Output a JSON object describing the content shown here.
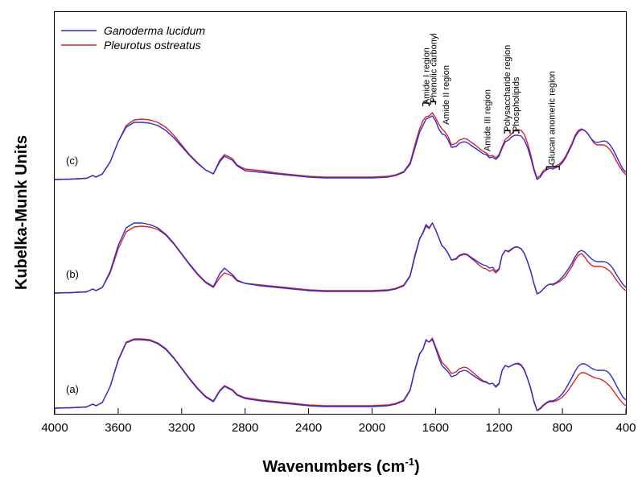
{
  "chart_data": {
    "type": "line",
    "xlabel": "Wavenumbers (cm",
    "xlabel_sup": "-1",
    "xlabel_end": ")",
    "ylabel": "Kubelka-Munk Units",
    "xlim": [
      4000,
      400
    ],
    "x_reversed": true,
    "xticks": [
      4000,
      3600,
      3200,
      2800,
      2400,
      2000,
      1600,
      1200,
      800,
      400
    ],
    "legend_placement": "top-left",
    "grid": false,
    "series": [
      {
        "name": "Ganoderma lucidum",
        "color": "#2b2bdb"
      },
      {
        "name": "Pleurotus ostreatus",
        "color": "#e02020"
      }
    ],
    "panels": [
      {
        "label": "(c)",
        "x": [
          4000,
          3900,
          3800,
          3760,
          3740,
          3700,
          3650,
          3600,
          3550,
          3500,
          3450,
          3400,
          3350,
          3300,
          3250,
          3200,
          3150,
          3100,
          3050,
          3000,
          2960,
          2930,
          2900,
          2880,
          2850,
          2800,
          2700,
          2600,
          2500,
          2400,
          2300,
          2200,
          2100,
          2000,
          1900,
          1850,
          1800,
          1760,
          1730,
          1700,
          1680,
          1660,
          1640,
          1620,
          1600,
          1580,
          1560,
          1540,
          1520,
          1500,
          1470,
          1450,
          1420,
          1400,
          1380,
          1350,
          1320,
          1300,
          1280,
          1260,
          1240,
          1220,
          1200,
          1180,
          1160,
          1140,
          1120,
          1100,
          1080,
          1060,
          1040,
          1020,
          1000,
          980,
          960,
          940,
          920,
          900,
          880,
          860,
          840,
          820,
          800,
          780,
          760,
          740,
          720,
          700,
          680,
          660,
          640,
          620,
          600,
          580,
          560,
          540,
          520,
          500,
          480,
          460,
          440,
          420,
          400
        ],
        "values": [
          [
            0.03,
            0.035,
            0.045,
            0.08,
            0.06,
            0.1,
            0.25,
            0.5,
            0.68,
            0.74,
            0.74,
            0.73,
            0.7,
            0.64,
            0.55,
            0.44,
            0.33,
            0.23,
            0.15,
            0.1,
            0.25,
            0.32,
            0.29,
            0.27,
            0.2,
            0.14,
            0.12,
            0.1,
            0.08,
            0.06,
            0.05,
            0.05,
            0.05,
            0.05,
            0.06,
            0.08,
            0.12,
            0.22,
            0.42,
            0.62,
            0.7,
            0.78,
            0.8,
            0.82,
            0.76,
            0.66,
            0.6,
            0.58,
            0.52,
            0.43,
            0.44,
            0.48,
            0.5,
            0.49,
            0.46,
            0.42,
            0.38,
            0.35,
            0.34,
            0.3,
            0.31,
            0.28,
            0.32,
            0.42,
            0.5,
            0.52,
            0.56,
            0.58,
            0.58,
            0.57,
            0.52,
            0.43,
            0.3,
            0.15,
            0.03,
            0.06,
            0.12,
            0.15,
            0.17,
            0.16,
            0.18,
            0.2,
            0.24,
            0.3,
            0.38,
            0.46,
            0.56,
            0.62,
            0.65,
            0.64,
            0.6,
            0.54,
            0.5,
            0.49,
            0.5,
            0.51,
            0.5,
            0.46,
            0.4,
            0.32,
            0.24,
            0.16,
            0.12
          ],
          [
            0.03,
            0.035,
            0.045,
            0.08,
            0.06,
            0.1,
            0.25,
            0.5,
            0.7,
            0.77,
            0.78,
            0.77,
            0.74,
            0.68,
            0.58,
            0.46,
            0.34,
            0.24,
            0.15,
            0.1,
            0.27,
            0.34,
            0.31,
            0.29,
            0.21,
            0.16,
            0.14,
            0.11,
            0.09,
            0.07,
            0.06,
            0.06,
            0.06,
            0.06,
            0.07,
            0.09,
            0.13,
            0.24,
            0.46,
            0.66,
            0.76,
            0.81,
            0.82,
            0.86,
            0.8,
            0.72,
            0.66,
            0.62,
            0.56,
            0.46,
            0.48,
            0.52,
            0.54,
            0.53,
            0.5,
            0.46,
            0.41,
            0.38,
            0.36,
            0.32,
            0.33,
            0.3,
            0.34,
            0.44,
            0.53,
            0.56,
            0.6,
            0.64,
            0.65,
            0.64,
            0.59,
            0.48,
            0.34,
            0.17,
            0.05,
            0.08,
            0.14,
            0.17,
            0.19,
            0.18,
            0.2,
            0.22,
            0.26,
            0.32,
            0.4,
            0.48,
            0.58,
            0.64,
            0.66,
            0.64,
            0.6,
            0.54,
            0.48,
            0.46,
            0.46,
            0.46,
            0.44,
            0.4,
            0.34,
            0.26,
            0.19,
            0.13,
            0.09
          ]
        ]
      },
      {
        "label": "(b)",
        "x": [
          4000,
          3900,
          3800,
          3760,
          3740,
          3700,
          3650,
          3600,
          3550,
          3500,
          3450,
          3400,
          3350,
          3300,
          3250,
          3200,
          3150,
          3100,
          3050,
          3000,
          2960,
          2930,
          2900,
          2880,
          2850,
          2800,
          2700,
          2600,
          2500,
          2400,
          2300,
          2200,
          2100,
          2000,
          1900,
          1850,
          1800,
          1760,
          1730,
          1700,
          1680,
          1660,
          1640,
          1620,
          1600,
          1580,
          1560,
          1540,
          1520,
          1500,
          1470,
          1450,
          1420,
          1400,
          1380,
          1350,
          1320,
          1300,
          1280,
          1260,
          1240,
          1220,
          1200,
          1180,
          1160,
          1140,
          1120,
          1100,
          1080,
          1060,
          1040,
          1020,
          1000,
          980,
          960,
          940,
          920,
          900,
          880,
          860,
          840,
          820,
          800,
          780,
          760,
          740,
          720,
          700,
          680,
          660,
          640,
          620,
          600,
          580,
          560,
          540,
          520,
          500,
          480,
          460,
          440,
          420,
          400
        ],
        "values": [
          [
            0.03,
            0.035,
            0.045,
            0.08,
            0.06,
            0.1,
            0.3,
            0.62,
            0.84,
            0.9,
            0.9,
            0.88,
            0.84,
            0.76,
            0.65,
            0.52,
            0.39,
            0.27,
            0.17,
            0.11,
            0.27,
            0.34,
            0.29,
            0.26,
            0.19,
            0.15,
            0.12,
            0.1,
            0.08,
            0.06,
            0.05,
            0.05,
            0.05,
            0.05,
            0.06,
            0.08,
            0.12,
            0.24,
            0.48,
            0.7,
            0.78,
            0.88,
            0.84,
            0.9,
            0.82,
            0.72,
            0.62,
            0.58,
            0.52,
            0.44,
            0.46,
            0.5,
            0.52,
            0.51,
            0.48,
            0.44,
            0.4,
            0.38,
            0.37,
            0.34,
            0.35,
            0.3,
            0.33,
            0.5,
            0.56,
            0.55,
            0.58,
            0.6,
            0.6,
            0.58,
            0.52,
            0.42,
            0.3,
            0.15,
            0.02,
            0.04,
            0.08,
            0.12,
            0.14,
            0.14,
            0.16,
            0.19,
            0.23,
            0.28,
            0.34,
            0.4,
            0.48,
            0.54,
            0.56,
            0.54,
            0.5,
            0.46,
            0.43,
            0.42,
            0.42,
            0.42,
            0.41,
            0.38,
            0.33,
            0.26,
            0.2,
            0.14,
            0.1
          ],
          [
            0.03,
            0.035,
            0.045,
            0.08,
            0.06,
            0.1,
            0.28,
            0.58,
            0.79,
            0.85,
            0.86,
            0.85,
            0.82,
            0.75,
            0.64,
            0.51,
            0.38,
            0.26,
            0.16,
            0.1,
            0.22,
            0.28,
            0.26,
            0.24,
            0.18,
            0.15,
            0.13,
            0.11,
            0.09,
            0.07,
            0.06,
            0.06,
            0.06,
            0.06,
            0.07,
            0.09,
            0.13,
            0.25,
            0.5,
            0.71,
            0.77,
            0.86,
            0.83,
            0.9,
            0.82,
            0.72,
            0.62,
            0.58,
            0.52,
            0.44,
            0.45,
            0.49,
            0.51,
            0.5,
            0.47,
            0.42,
            0.37,
            0.34,
            0.33,
            0.3,
            0.32,
            0.28,
            0.32,
            0.5,
            0.56,
            0.54,
            0.57,
            0.6,
            0.6,
            0.58,
            0.52,
            0.42,
            0.3,
            0.15,
            0.02,
            0.04,
            0.08,
            0.12,
            0.14,
            0.13,
            0.15,
            0.17,
            0.2,
            0.24,
            0.3,
            0.36,
            0.44,
            0.5,
            0.52,
            0.48,
            0.42,
            0.38,
            0.36,
            0.36,
            0.36,
            0.35,
            0.33,
            0.3,
            0.25,
            0.19,
            0.14,
            0.09,
            0.06
          ]
        ]
      },
      {
        "label": "(a)",
        "x": [
          4000,
          3900,
          3800,
          3760,
          3740,
          3700,
          3650,
          3600,
          3550,
          3500,
          3450,
          3400,
          3350,
          3300,
          3250,
          3200,
          3150,
          3100,
          3050,
          3000,
          2960,
          2930,
          2900,
          2880,
          2850,
          2800,
          2700,
          2600,
          2500,
          2400,
          2300,
          2200,
          2100,
          2000,
          1900,
          1850,
          1800,
          1760,
          1730,
          1700,
          1680,
          1660,
          1640,
          1620,
          1600,
          1580,
          1560,
          1540,
          1520,
          1500,
          1470,
          1450,
          1420,
          1400,
          1380,
          1350,
          1320,
          1300,
          1280,
          1260,
          1240,
          1220,
          1200,
          1180,
          1160,
          1140,
          1120,
          1100,
          1080,
          1060,
          1040,
          1020,
          1000,
          980,
          960,
          940,
          920,
          900,
          880,
          860,
          840,
          820,
          800,
          780,
          760,
          740,
          720,
          700,
          680,
          660,
          640,
          620,
          600,
          580,
          560,
          540,
          520,
          500,
          480,
          460,
          440,
          420,
          400
        ],
        "values": [
          [
            0.03,
            0.035,
            0.045,
            0.08,
            0.06,
            0.1,
            0.3,
            0.62,
            0.84,
            0.88,
            0.88,
            0.87,
            0.83,
            0.76,
            0.65,
            0.52,
            0.39,
            0.27,
            0.17,
            0.11,
            0.24,
            0.3,
            0.27,
            0.25,
            0.19,
            0.15,
            0.12,
            0.1,
            0.08,
            0.06,
            0.05,
            0.05,
            0.05,
            0.05,
            0.06,
            0.08,
            0.12,
            0.25,
            0.5,
            0.7,
            0.76,
            0.88,
            0.85,
            0.88,
            0.78,
            0.66,
            0.56,
            0.52,
            0.48,
            0.42,
            0.44,
            0.48,
            0.5,
            0.49,
            0.46,
            0.42,
            0.38,
            0.36,
            0.35,
            0.33,
            0.34,
            0.3,
            0.34,
            0.5,
            0.56,
            0.54,
            0.56,
            0.58,
            0.58,
            0.56,
            0.5,
            0.4,
            0.28,
            0.12,
            0.0,
            0.03,
            0.07,
            0.1,
            0.12,
            0.12,
            0.14,
            0.17,
            0.21,
            0.27,
            0.34,
            0.41,
            0.49,
            0.55,
            0.58,
            0.58,
            0.56,
            0.53,
            0.51,
            0.5,
            0.5,
            0.5,
            0.49,
            0.45,
            0.39,
            0.31,
            0.24,
            0.17,
            0.13
          ],
          [
            0.03,
            0.035,
            0.045,
            0.08,
            0.06,
            0.1,
            0.3,
            0.63,
            0.85,
            0.89,
            0.89,
            0.88,
            0.84,
            0.77,
            0.66,
            0.53,
            0.4,
            0.28,
            0.18,
            0.12,
            0.25,
            0.31,
            0.28,
            0.26,
            0.2,
            0.16,
            0.13,
            0.11,
            0.09,
            0.07,
            0.06,
            0.06,
            0.06,
            0.06,
            0.07,
            0.09,
            0.13,
            0.26,
            0.51,
            0.71,
            0.76,
            0.87,
            0.85,
            0.9,
            0.8,
            0.7,
            0.6,
            0.56,
            0.52,
            0.46,
            0.48,
            0.52,
            0.54,
            0.53,
            0.5,
            0.45,
            0.4,
            0.37,
            0.36,
            0.33,
            0.34,
            0.29,
            0.33,
            0.5,
            0.56,
            0.54,
            0.56,
            0.58,
            0.59,
            0.57,
            0.51,
            0.4,
            0.27,
            0.11,
            0.0,
            0.02,
            0.06,
            0.09,
            0.11,
            0.11,
            0.12,
            0.14,
            0.17,
            0.21,
            0.26,
            0.32,
            0.38,
            0.44,
            0.47,
            0.47,
            0.45,
            0.43,
            0.41,
            0.4,
            0.39,
            0.37,
            0.34,
            0.3,
            0.25,
            0.19,
            0.14,
            0.09,
            0.06
          ]
        ]
      }
    ],
    "annotations": [
      {
        "text": "Amide I region",
        "x": 1660
      },
      {
        "text": "Phenolic carbonyl",
        "x": 1615
      },
      {
        "text": "Amide II region",
        "x": 1535
      },
      {
        "text": "Amide III region",
        "x": 1275
      },
      {
        "text": "Polysaccharide region",
        "x": 1150
      },
      {
        "text": "Phospholipids",
        "x": 1095
      },
      {
        "text": "Glucan anomeric region",
        "x": 870
      }
    ]
  }
}
